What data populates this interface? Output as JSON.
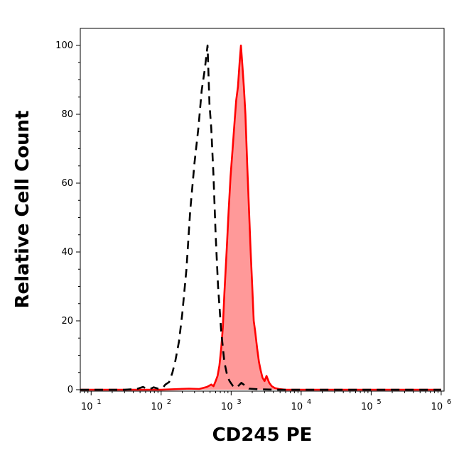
{
  "chart_data": {
    "type": "area",
    "xlabel": "CD245 PE",
    "ylabel": "Relative Cell Count",
    "xscale": "log",
    "xlim": [
      7,
      1100000
    ],
    "ylim": [
      0,
      100
    ],
    "grid": false,
    "legend": "none",
    "x_ticks": [
      {
        "value": 10,
        "base": "10",
        "exp": "1"
      },
      {
        "value": 100,
        "base": "10",
        "exp": "2"
      },
      {
        "value": 1000,
        "base": "10",
        "exp": "3"
      },
      {
        "value": 10000,
        "base": "10",
        "exp": "4"
      },
      {
        "value": 100000,
        "base": "10",
        "exp": "5"
      },
      {
        "value": 1000000,
        "base": "10",
        "exp": "6"
      }
    ],
    "y_ticks": [
      0,
      20,
      40,
      60,
      80,
      100
    ],
    "series": [
      {
        "style": "dashed",
        "color": "#000000",
        "fill": "none",
        "x": [
          7,
          30,
          45,
          55,
          62,
          70,
          78,
          90,
          105,
          115,
          130,
          145,
          160,
          180,
          200,
          230,
          260,
          300,
          340,
          380,
          420,
          460,
          490,
          520,
          560,
          600,
          650,
          720,
          800,
          880,
          950,
          1050,
          1200,
          1400,
          1800,
          2500,
          5000,
          10000,
          100000,
          1000000
        ],
        "y": [
          0,
          0,
          0.2,
          0.8,
          0.3,
          0.2,
          0.7,
          0.3,
          0.5,
          1.5,
          2.2,
          5.0,
          8.5,
          14.0,
          22.0,
          35.0,
          52.0,
          66.0,
          76.0,
          87.0,
          93.0,
          100.0,
          83.0,
          76.0,
          62.0,
          45.0,
          30.0,
          17.0,
          8.0,
          4.0,
          2.5,
          1.2,
          0.6,
          2.0,
          0.3,
          0.1,
          0,
          0,
          0,
          0
        ]
      },
      {
        "style": "solid",
        "color": "#ff0000",
        "fill": "#ff9999",
        "x": [
          7,
          100,
          250,
          350,
          450,
          520,
          560,
          600,
          640,
          680,
          720,
          760,
          800,
          860,
          920,
          980,
          1050,
          1120,
          1180,
          1250,
          1320,
          1380,
          1450,
          1520,
          1600,
          1700,
          1800,
          1900,
          2000,
          2100,
          2200,
          2350,
          2500,
          2650,
          2800,
          3000,
          3200,
          3500,
          3800,
          4200,
          4800,
          6000,
          10000,
          100000,
          1000000
        ],
        "y": [
          0,
          0,
          0.3,
          0.2,
          0.8,
          1.5,
          1.0,
          2.5,
          4.0,
          7.0,
          12.0,
          18.0,
          28.0,
          40.0,
          52.0,
          62.0,
          70.0,
          78.0,
          84.0,
          88.0,
          95.0,
          100.0,
          94.0,
          88.0,
          80.0,
          65.0,
          52.0,
          40.0,
          30.0,
          20.0,
          17.0,
          12.0,
          8.0,
          5.5,
          3.5,
          2.5,
          4.0,
          2.0,
          1.0,
          0.5,
          0.2,
          0,
          0,
          0,
          0
        ]
      }
    ]
  }
}
